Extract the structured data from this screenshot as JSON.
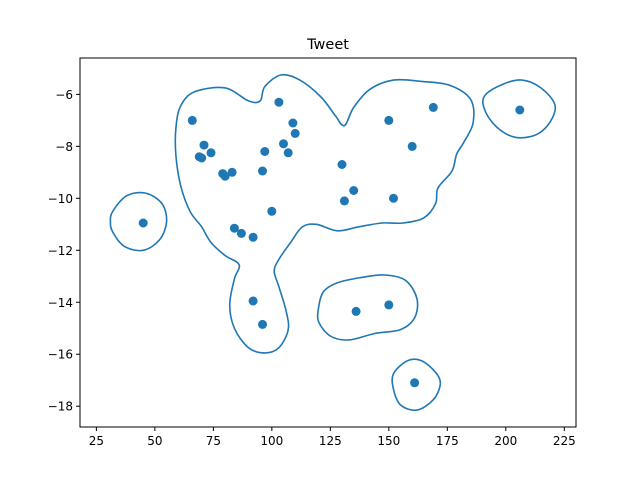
{
  "chart_data": {
    "type": "scatter",
    "title": "Tweet",
    "xlabel": "",
    "ylabel": "",
    "xlim": [
      18,
      230
    ],
    "ylim": [
      -18.8,
      -4.6
    ],
    "x_ticks": [
      25,
      50,
      75,
      100,
      125,
      150,
      175,
      200,
      225
    ],
    "y_ticks": [
      -6,
      -8,
      -10,
      -12,
      -14,
      -16,
      -18
    ],
    "grid": false,
    "point_color": "#1f77b4",
    "contour_color": "#1f77b4",
    "points": [
      {
        "x": 103,
        "y": -6.3
      },
      {
        "x": 66,
        "y": -7.0
      },
      {
        "x": 109,
        "y": -7.1
      },
      {
        "x": 110,
        "y": -7.5
      },
      {
        "x": 105,
        "y": -7.9
      },
      {
        "x": 71,
        "y": -7.95
      },
      {
        "x": 97,
        "y": -8.2
      },
      {
        "x": 107,
        "y": -8.25
      },
      {
        "x": 74,
        "y": -8.25
      },
      {
        "x": 70,
        "y": -8.45
      },
      {
        "x": 69,
        "y": -8.4
      },
      {
        "x": 96,
        "y": -8.95
      },
      {
        "x": 83,
        "y": -9.0
      },
      {
        "x": 79,
        "y": -9.05
      },
      {
        "x": 80,
        "y": -9.15
      },
      {
        "x": 130,
        "y": -8.7
      },
      {
        "x": 150,
        "y": -7.0
      },
      {
        "x": 169,
        "y": -6.5
      },
      {
        "x": 160,
        "y": -8.0
      },
      {
        "x": 206,
        "y": -6.6
      },
      {
        "x": 135,
        "y": -9.7
      },
      {
        "x": 131,
        "y": -10.1
      },
      {
        "x": 152,
        "y": -10.0
      },
      {
        "x": 100,
        "y": -10.5
      },
      {
        "x": 45,
        "y": -10.95
      },
      {
        "x": 84,
        "y": -11.15
      },
      {
        "x": 87,
        "y": -11.35
      },
      {
        "x": 92,
        "y": -11.5
      },
      {
        "x": 92,
        "y": -13.95
      },
      {
        "x": 96,
        "y": -14.85
      },
      {
        "x": 136,
        "y": -14.35
      },
      {
        "x": 150,
        "y": -14.1
      },
      {
        "x": 161,
        "y": -17.1
      }
    ],
    "contours": [
      [
        [
          67,
          -5.9
        ],
        [
          80,
          -5.75
        ],
        [
          90,
          -6.25
        ],
        [
          95,
          -6.25
        ],
        [
          97,
          -5.7
        ],
        [
          104,
          -5.25
        ],
        [
          112,
          -5.45
        ],
        [
          121,
          -6.1
        ],
        [
          127,
          -6.8
        ],
        [
          131,
          -7.2
        ],
        [
          135,
          -6.5
        ],
        [
          142,
          -5.8
        ],
        [
          152,
          -5.45
        ],
        [
          164,
          -5.5
        ],
        [
          176,
          -5.65
        ],
        [
          185,
          -6.2
        ],
        [
          186,
          -7.1
        ],
        [
          182,
          -7.85
        ],
        [
          179,
          -8.3
        ],
        [
          177,
          -8.95
        ],
        [
          171,
          -9.6
        ],
        [
          170,
          -10.2
        ],
        [
          165,
          -10.75
        ],
        [
          156,
          -10.95
        ],
        [
          147,
          -10.95
        ],
        [
          137,
          -11.1
        ],
        [
          128,
          -11.25
        ],
        [
          119,
          -11.0
        ],
        [
          113,
          -11.1
        ],
        [
          108,
          -11.7
        ],
        [
          103,
          -12.35
        ],
        [
          101,
          -12.8
        ],
        [
          103,
          -13.4
        ],
        [
          106,
          -14.3
        ],
        [
          107,
          -15.05
        ],
        [
          103,
          -15.75
        ],
        [
          97,
          -15.95
        ],
        [
          90,
          -15.75
        ],
        [
          84,
          -15.0
        ],
        [
          82,
          -14.1
        ],
        [
          84,
          -13.1
        ],
        [
          86,
          -12.55
        ],
        [
          80,
          -12.2
        ],
        [
          74,
          -11.7
        ],
        [
          70,
          -11.1
        ],
        [
          65,
          -10.5
        ],
        [
          61,
          -9.5
        ],
        [
          59,
          -8.35
        ],
        [
          59,
          -7.3
        ],
        [
          61,
          -6.45
        ],
        [
          67,
          -5.9
        ]
      ],
      [
        [
          32,
          -10.5
        ],
        [
          38,
          -9.9
        ],
        [
          46,
          -9.8
        ],
        [
          53,
          -10.2
        ],
        [
          55,
          -10.9
        ],
        [
          52,
          -11.6
        ],
        [
          45,
          -12.0
        ],
        [
          37,
          -11.85
        ],
        [
          32,
          -11.3
        ],
        [
          31,
          -10.9
        ],
        [
          32,
          -10.5
        ]
      ],
      [
        [
          120,
          -14.2
        ],
        [
          122,
          -13.6
        ],
        [
          128,
          -13.25
        ],
        [
          138,
          -13.05
        ],
        [
          148,
          -12.95
        ],
        [
          157,
          -13.15
        ],
        [
          162,
          -13.85
        ],
        [
          161,
          -14.6
        ],
        [
          155,
          -15.05
        ],
        [
          144,
          -15.2
        ],
        [
          133,
          -15.45
        ],
        [
          125,
          -15.3
        ],
        [
          120,
          -14.75
        ],
        [
          120,
          -14.2
        ]
      ],
      [
        [
          191,
          -6.05
        ],
        [
          199,
          -5.6
        ],
        [
          207,
          -5.45
        ],
        [
          215,
          -5.75
        ],
        [
          221,
          -6.4
        ],
        [
          219,
          -7.05
        ],
        [
          213,
          -7.55
        ],
        [
          204,
          -7.65
        ],
        [
          196,
          -7.25
        ],
        [
          191,
          -6.6
        ],
        [
          191,
          -6.05
        ]
      ],
      [
        [
          152,
          -16.75
        ],
        [
          158,
          -16.25
        ],
        [
          164,
          -16.25
        ],
        [
          170,
          -16.7
        ],
        [
          172,
          -17.15
        ],
        [
          169,
          -17.75
        ],
        [
          162,
          -18.15
        ],
        [
          155,
          -17.95
        ],
        [
          152,
          -17.35
        ],
        [
          152,
          -16.75
        ]
      ]
    ]
  }
}
